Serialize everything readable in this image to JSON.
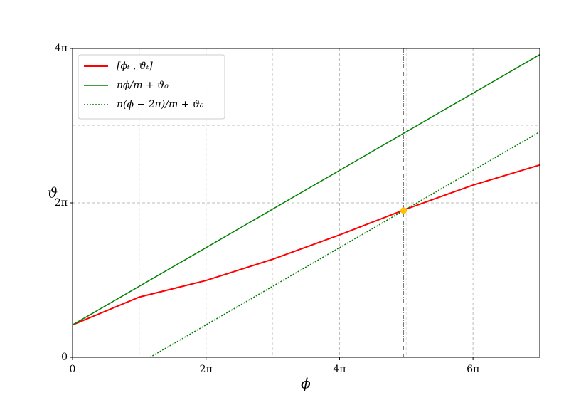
{
  "chart_data": {
    "type": "line",
    "xlabel": "ϕ",
    "ylabel": "ϑ",
    "xlim": [
      0,
      7
    ],
    "ylim": [
      0,
      4
    ],
    "xticks": [
      0,
      {
        "value": 2,
        "label": "2π"
      },
      {
        "value": 4,
        "label": "4π"
      },
      {
        "value": 6,
        "label": "6π"
      }
    ],
    "yticks": [
      0,
      {
        "value": 2,
        "label": "2π"
      },
      {
        "value": 4,
        "label": "4π"
      }
    ],
    "minor_xticks": [
      1,
      3,
      5
    ],
    "minor_yticks": [
      1,
      3
    ],
    "grid": true,
    "legend": "upper left",
    "series": [
      {
        "name": "[ϕₜ , ϑₜ]",
        "color": "#ff0000",
        "style": "solid",
        "width": 2,
        "x": [
          0,
          1,
          2,
          3,
          4,
          5,
          6,
          7
        ],
        "values": [
          0.42,
          0.78,
          0.995,
          1.27,
          1.585,
          1.92,
          2.23,
          2.49
        ]
      },
      {
        "name": "nϕ/m + ϑ₀",
        "color": "#008000",
        "style": "solid",
        "width": 1.5,
        "x": [
          0,
          7
        ],
        "values": [
          0.42,
          3.92
        ]
      },
      {
        "name": "n(ϕ − 2π)/m + ϑ₀",
        "color": "#008000",
        "style": "dotted",
        "width": 1.5,
        "x": [
          1.16,
          7
        ],
        "values": [
          0,
          2.92
        ]
      }
    ],
    "vline": {
      "x": 4.96,
      "color": "#777777"
    },
    "point": {
      "x": 4.96,
      "y": 1.9,
      "color": "#ffc000"
    }
  }
}
